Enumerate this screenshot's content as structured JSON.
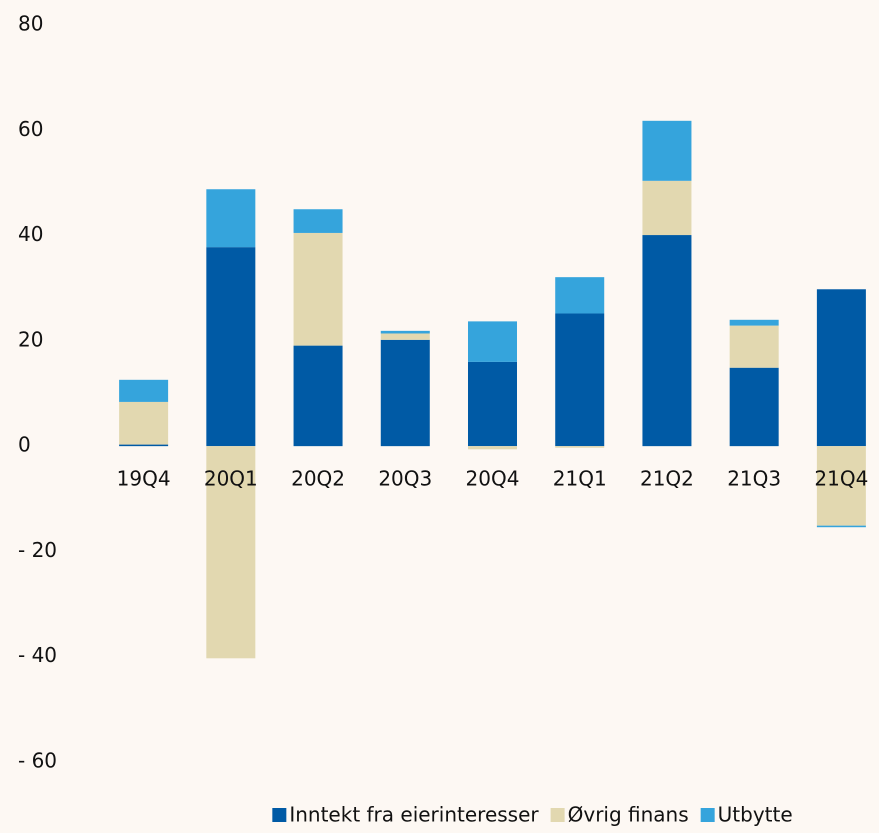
{
  "chart_data": {
    "type": "stacked_bar",
    "categories": [
      "19Q4",
      "20Q1",
      "20Q2",
      "20Q3",
      "20Q4",
      "21Q1",
      "21Q2",
      "21Q3",
      "21Q4"
    ],
    "series": [
      {
        "name": "Inntekt fra eierinteresser",
        "color": "#005aa5",
        "values": [
          0.3,
          37.8,
          19.1,
          20.2,
          16.0,
          25.2,
          40.1,
          14.9,
          29.8
        ]
      },
      {
        "name": "Øvrig finans",
        "color": "#e2d8b0",
        "values": [
          8.1,
          -40.3,
          21.4,
          1.2,
          -0.6,
          -0.3,
          10.3,
          8.0,
          -15.1
        ]
      },
      {
        "name": "Utbytte",
        "color": "#35a4dc",
        "values": [
          4.2,
          11.0,
          4.5,
          0.5,
          7.7,
          6.9,
          11.4,
          1.1,
          -0.3
        ]
      }
    ],
    "ylim": [
      -60,
      80
    ],
    "yticks": [
      {
        "value": -60,
        "label": "- 60"
      },
      {
        "value": -40,
        "label": "- 40"
      },
      {
        "value": -20,
        "label": "- 20"
      },
      0,
      20,
      40,
      60,
      80
    ],
    "legend": "bottom"
  }
}
